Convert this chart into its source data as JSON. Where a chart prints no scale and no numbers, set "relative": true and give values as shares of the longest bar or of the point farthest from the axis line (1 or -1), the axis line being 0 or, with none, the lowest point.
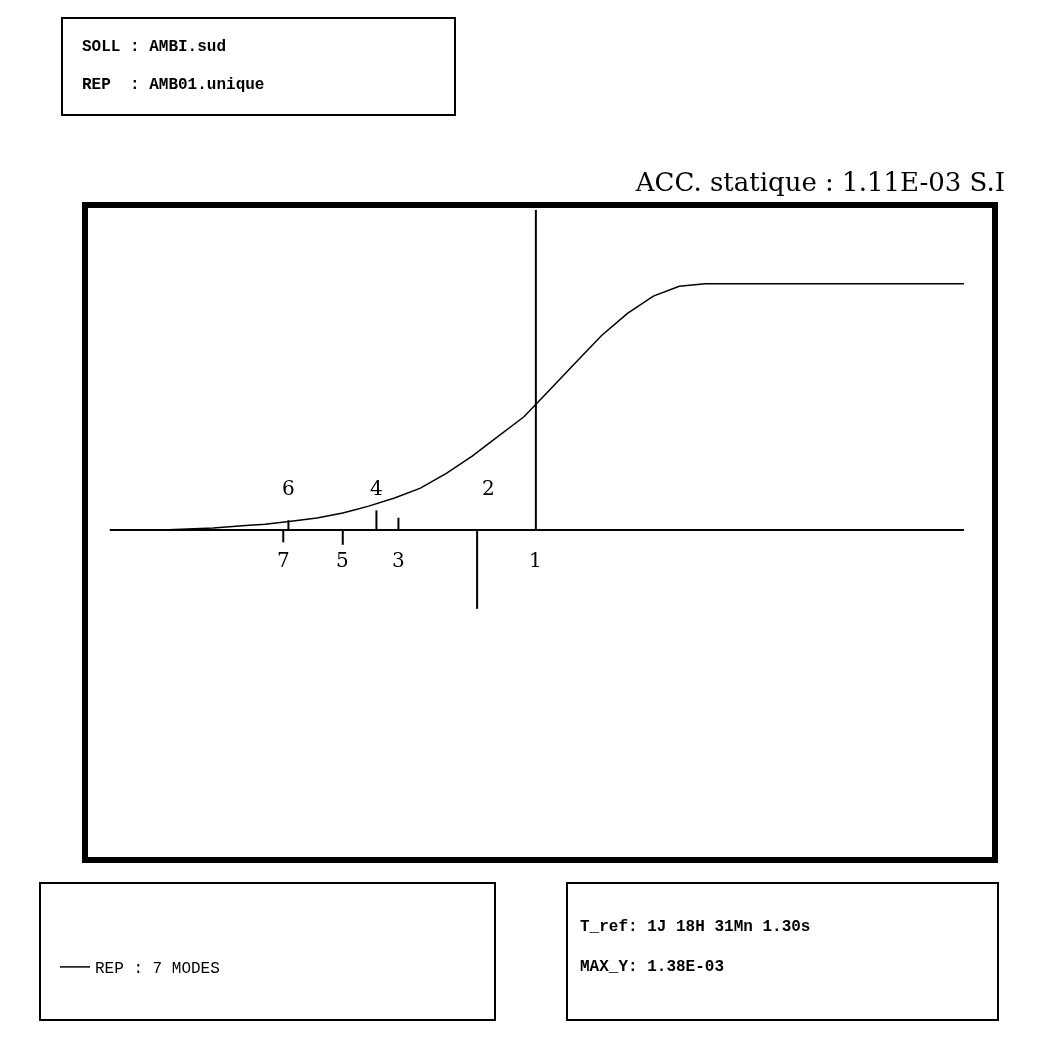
{
  "chart_data": {
    "type": "line",
    "relative": true,
    "title": "ACC. statique : 1.11E-03 S.I",
    "categories": [
      null,
      null,
      null,
      null,
      null,
      null,
      null,
      null,
      null,
      null,
      null,
      null,
      null,
      null,
      null,
      null,
      null,
      null,
      null,
      null,
      null,
      null,
      null,
      null,
      null,
      null,
      null,
      null,
      null,
      null,
      null,
      null,
      null,
      null
    ],
    "series": [
      {
        "name": "REP : 7 MODES",
        "color": "#000000",
        "values": [
          0,
          0,
          0,
          0.004,
          0.008,
          0.016,
          0.024,
          0.036,
          0.049,
          0.069,
          0.097,
          0.13,
          0.17,
          0.23,
          0.3,
          0.38,
          0.46,
          0.57,
          0.68,
          0.79,
          0.88,
          0.95,
          0.99,
          1,
          1,
          1,
          1,
          1,
          1,
          1,
          1,
          1,
          1,
          1
        ]
      }
    ],
    "annotations": [
      "SOLL : AMBI.sud",
      "REP  : AMB01.unique",
      "T_ref: 1J 18H 31Mn 1.30s",
      "MAX_Y: 1.38E-03",
      "1",
      "2",
      "3",
      "4",
      "5",
      "6",
      "7"
    ],
    "legend": "bottom left",
    "grid": false,
    "marker": "none",
    "line_style": "solid"
  }
}
